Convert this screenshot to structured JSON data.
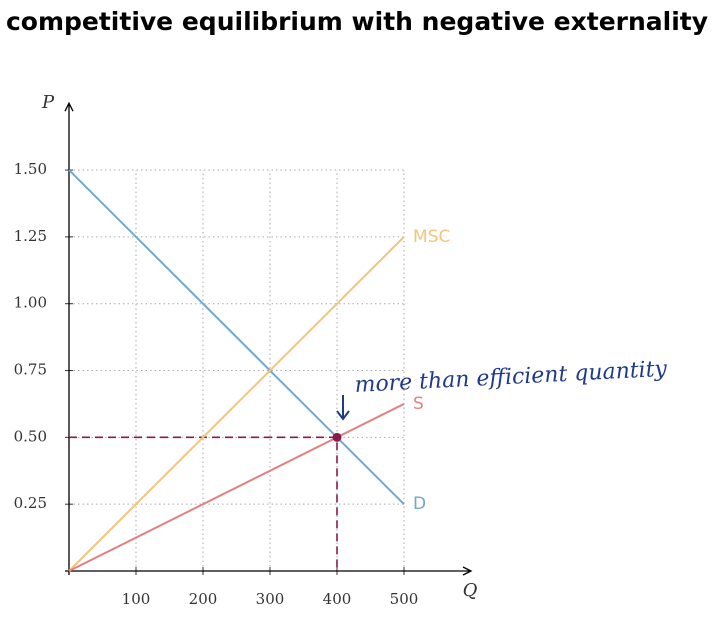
{
  "chart_data": {
    "type": "line",
    "title": "competitive equilibrium with negative externality",
    "x_label": "Q",
    "y_label": "P",
    "x": [
      0,
      500
    ],
    "series": [
      {
        "name": "D",
        "color": "#6fa8d6",
        "values": [
          1.5,
          0.25
        ]
      },
      {
        "name": "MSC",
        "color": "#f2c57c",
        "values": [
          0,
          1.25
        ]
      },
      {
        "name": "S",
        "color": "#e38080",
        "values": [
          0,
          0.625
        ]
      }
    ],
    "equilibrium": {
      "x": 400,
      "y": 0.5,
      "color": "#8b1a4a"
    },
    "annotation": "more than efficient quantity",
    "xlim": [
      0,
      600
    ],
    "ylim": [
      0,
      1.75
    ],
    "xticks": [
      100,
      200,
      300,
      400,
      500
    ],
    "yticks": [
      0.25,
      {
        "value": 0.5,
        "label": "0.50"
      },
      0.75,
      {
        "value": 1,
        "label": "1.00"
      },
      1.25,
      {
        "value": 1.5,
        "label": "1.50"
      }
    ],
    "grid": true
  }
}
